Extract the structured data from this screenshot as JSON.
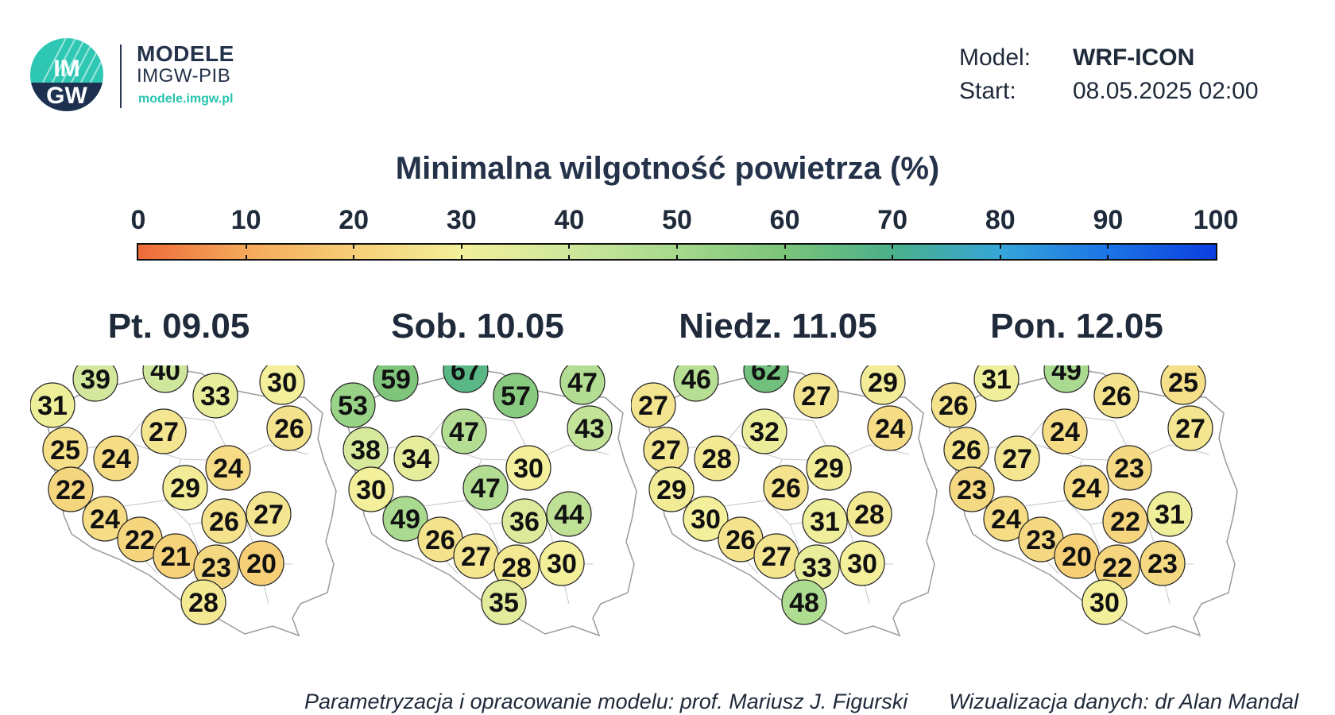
{
  "brand": {
    "name": "MODELE",
    "org": "IMGW-PIB",
    "url": "modele.imgw.pl",
    "logo_text_top": "IM",
    "logo_text_bottom": "GW"
  },
  "meta": {
    "model_label": "Model:",
    "model_value": "WRF-ICON",
    "start_label": "Start:",
    "start_value": "08.05.2025 02:00"
  },
  "title": "Minimalna wilgotność powietrza (%)",
  "colorbar": {
    "ticks": [
      "0",
      "10",
      "20",
      "30",
      "40",
      "50",
      "60",
      "70",
      "80",
      "90",
      "100"
    ],
    "colors": [
      "#ef6a3a",
      "#f5a95a",
      "#f6cf77",
      "#f3ef9a",
      "#cfe79c",
      "#a6d98d",
      "#7bc47a",
      "#4bb08a",
      "#35a6d8",
      "#1c74e6",
      "#0b3ee0"
    ]
  },
  "days": [
    {
      "label": "Pt. 09.05",
      "values": [
        31,
        39,
        40,
        33,
        30,
        25,
        27,
        26,
        22,
        24,
        24,
        29,
        24,
        26,
        27,
        22,
        21,
        23,
        20,
        28
      ]
    },
    {
      "label": "Sob. 10.05",
      "values": [
        53,
        59,
        67,
        57,
        47,
        38,
        47,
        43,
        30,
        34,
        49,
        47,
        30,
        36,
        44,
        26,
        27,
        28,
        30,
        35
      ]
    },
    {
      "label": "Niedz. 11.05",
      "values": [
        27,
        46,
        62,
        27,
        29,
        27,
        32,
        24,
        29,
        28,
        30,
        26,
        29,
        31,
        28,
        26,
        27,
        33,
        30,
        48
      ]
    },
    {
      "label": "Pon. 12.05",
      "values": [
        26,
        31,
        49,
        26,
        25,
        26,
        24,
        27,
        23,
        27,
        24,
        24,
        23,
        22,
        31,
        23,
        20,
        22,
        23,
        30
      ]
    }
  ],
  "credits": {
    "left": "Parametryzacja i opracowanie modelu: prof. Mariusz J. Figurski",
    "right": "Wizualizacja danych: dr Alan Mandal"
  }
}
